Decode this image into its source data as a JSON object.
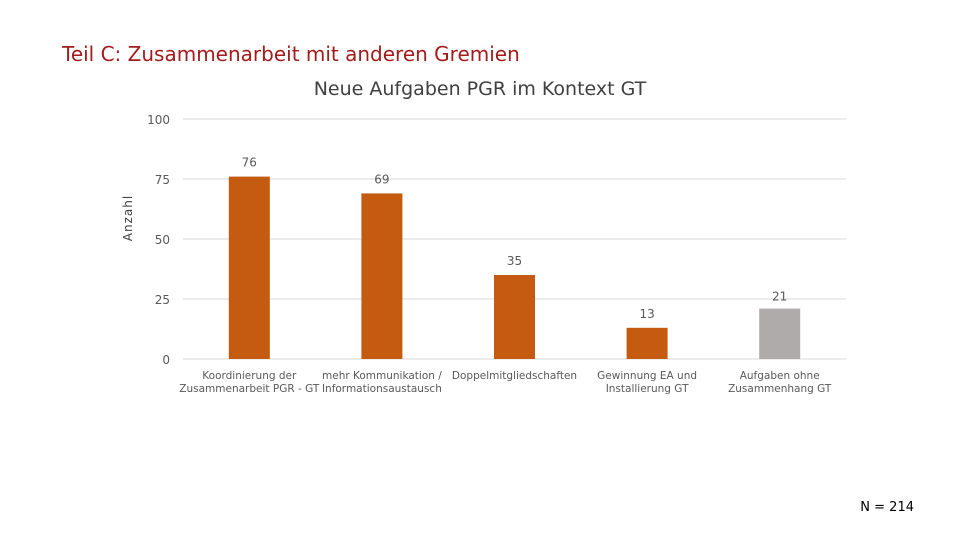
{
  "slide": {
    "title": "Teil C: Zusammenarbeit mit anderen Gremien",
    "n_label": "N = 214"
  },
  "colors": {
    "title": "#a31b1b",
    "bar_primary": "#c55a11",
    "bar_other": "#afabab",
    "grid": "#d9d9d9",
    "text": "#595959"
  },
  "chart_data": {
    "type": "bar",
    "title": "Neue Aufgaben PGR im Kontext GT",
    "ylabel": "Anzahl",
    "xlabel": "",
    "ylim": [
      0,
      100
    ],
    "yticks": [
      "0",
      "25",
      "50",
      "75",
      "100"
    ],
    "grid": true,
    "categories": [
      [
        "Koordinierung der",
        "Zusammenarbeit PGR - GT"
      ],
      [
        "mehr Kommunikation /",
        "Informationsaustausch"
      ],
      [
        "Doppelmitgliedschaften"
      ],
      [
        "Gewinnung EA und",
        "Installierung GT"
      ],
      [
        "Aufgaben ohne",
        "Zusammenhang GT"
      ]
    ],
    "values": [
      76,
      69,
      35,
      13,
      21
    ],
    "data_labels": [
      "76",
      "69",
      "35",
      "13",
      "21"
    ],
    "bar_color_keys": [
      "bar_primary",
      "bar_primary",
      "bar_primary",
      "bar_primary",
      "bar_other"
    ]
  }
}
